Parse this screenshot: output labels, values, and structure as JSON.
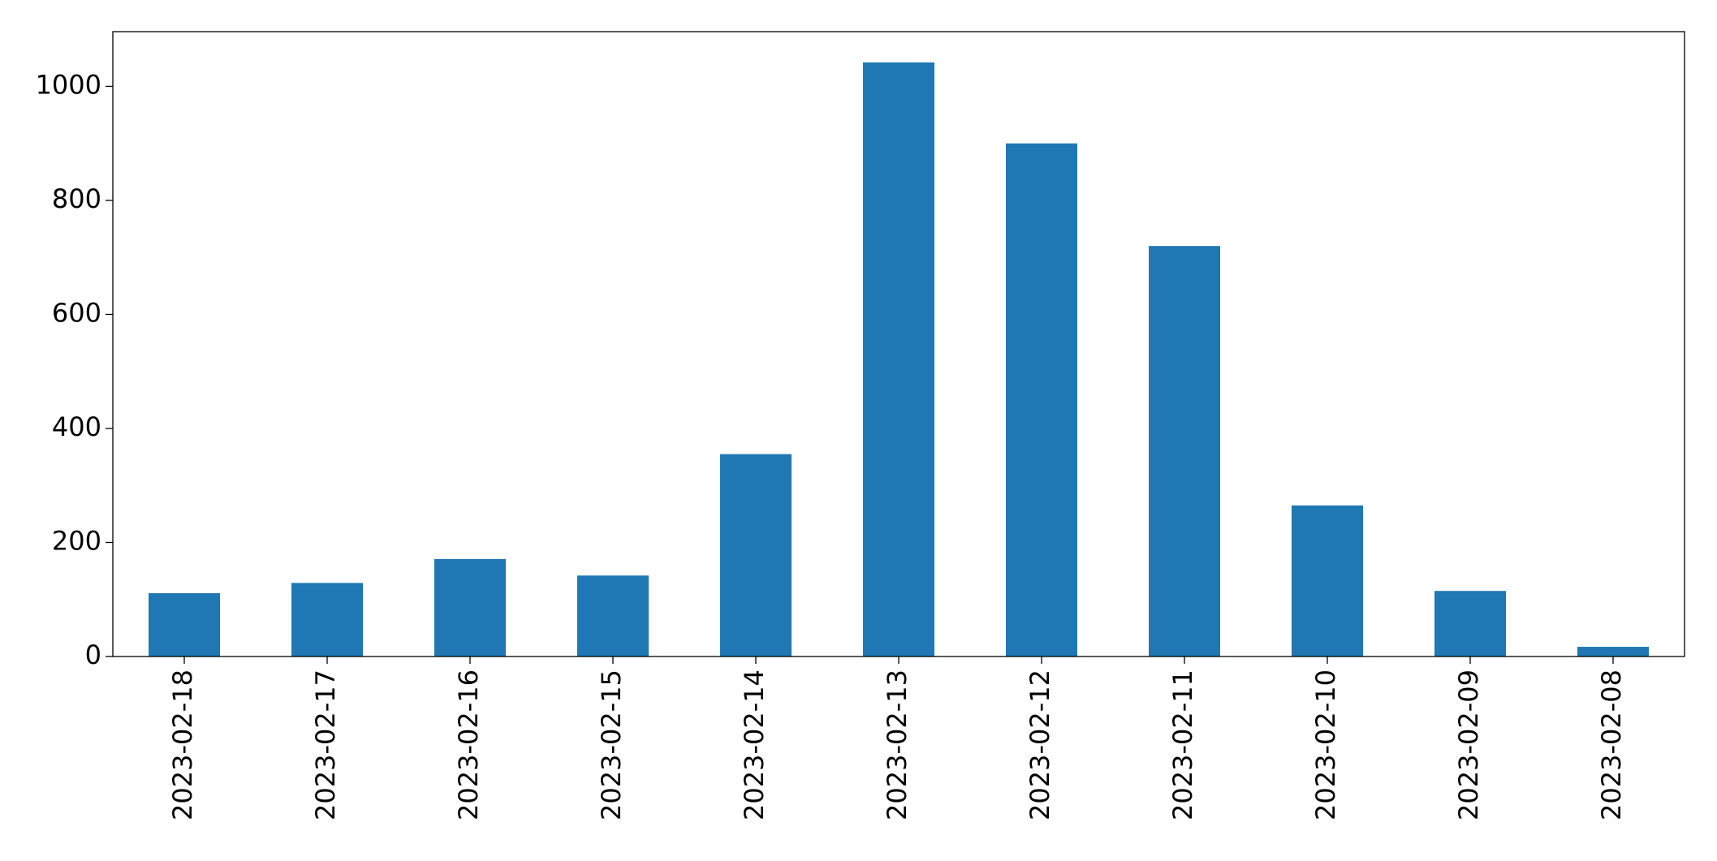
{
  "chart_data": {
    "type": "bar",
    "categories": [
      "2023-02-18",
      "2023-02-17",
      "2023-02-16",
      "2023-02-15",
      "2023-02-14",
      "2023-02-13",
      "2023-02-12",
      "2023-02-11",
      "2023-02-10",
      "2023-02-09",
      "2023-02-08"
    ],
    "values": [
      111,
      129,
      171,
      142,
      355,
      1042,
      900,
      720,
      265,
      115,
      17
    ],
    "color": "#1f77b4",
    "ylim": [
      0,
      1096
    ],
    "yticks": [
      0,
      200,
      400,
      600,
      800,
      1000
    ],
    "grid": false
  }
}
